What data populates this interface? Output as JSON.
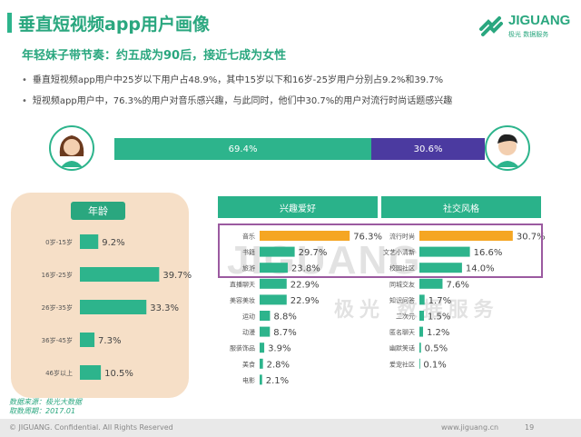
{
  "title": "垂直短视频app用户画像",
  "subtitle": "年轻妹子带节奏：约五成为90后，接近七成为女性",
  "bullets": [
    "垂直短视频app用户中25岁以下用户占48.9%，其中15岁以下和16岁-25岁用户分别占9.2%和39.7%",
    "短视频app用户中，76.3%的用户对音乐感兴趣，与此同时，他们中30.7%的用户对流行时尚话题感兴趣"
  ],
  "logo": {
    "name": "JIGUANG",
    "sub": "极光 数据服务"
  },
  "gender": {
    "female_pct": 69.4,
    "male_pct": 30.6,
    "female_label": "69.4%",
    "male_label": "30.6%",
    "female_color": "#2db48c",
    "male_color": "#4b3aa0"
  },
  "age_header": "年龄",
  "interest_header": "兴趣爱好",
  "social_header": "社交风格",
  "watermark": "JIGUANG",
  "watermark_sub": "极光 数据服务",
  "source_line1": "数据来源：极光大数据",
  "source_line2": "取数周期：2017.01",
  "footer_left": "© JIGUANG. Confidential. All Rights Reserved",
  "footer_site": "www.jiguang.cn",
  "footer_page": "19",
  "colors": {
    "green": "#2db48c",
    "orange": "#f5a623",
    "purple": "#4b3aa0",
    "panel": "#f6dfc7",
    "highlight": "#9b5aa0"
  },
  "chart_data": [
    {
      "type": "bar",
      "name": "age",
      "categories": [
        "0岁-15岁",
        "16岁-25岁",
        "26岁-35岁",
        "36岁-45岁",
        "46岁以上"
      ],
      "values": [
        9.2,
        39.7,
        33.3,
        7.3,
        10.5
      ],
      "labels": [
        "9.2%",
        "39.7%",
        "33.3%",
        "7.3%",
        "10.5%"
      ]
    },
    {
      "type": "bar",
      "name": "interests",
      "categories": [
        "音乐",
        "书籍",
        "旅游",
        "直播聊天",
        "美容美妆",
        "运动",
        "动漫",
        "服装饰品",
        "美食",
        "电影"
      ],
      "values": [
        76.3,
        29.7,
        23.8,
        22.9,
        22.9,
        8.8,
        8.7,
        3.9,
        2.8,
        2.1
      ],
      "labels": [
        "76.3%",
        "29.7%",
        "23.8%",
        "22.9%",
        "22.9%",
        "8.8%",
        "8.7%",
        "3.9%",
        "2.8%",
        "2.1%"
      ],
      "highlight": [
        true,
        false,
        false,
        false,
        false,
        false,
        false,
        false,
        false,
        false
      ]
    },
    {
      "type": "bar",
      "name": "social",
      "categories": [
        "流行时尚",
        "文艺小清新",
        "校园社区",
        "同城交友",
        "知识问答",
        "二次元",
        "匿名聊天",
        "幽默笑话",
        "爱宠社区"
      ],
      "values": [
        30.7,
        16.6,
        14.0,
        7.6,
        1.7,
        1.5,
        1.2,
        0.5,
        0.1
      ],
      "labels": [
        "30.7%",
        "16.6%",
        "14.0%",
        "7.6%",
        "1.7%",
        "1.5%",
        "1.2%",
        "0.5%",
        "0.1%"
      ],
      "highlight": [
        true,
        false,
        false,
        false,
        false,
        false,
        false,
        false,
        false
      ]
    }
  ]
}
